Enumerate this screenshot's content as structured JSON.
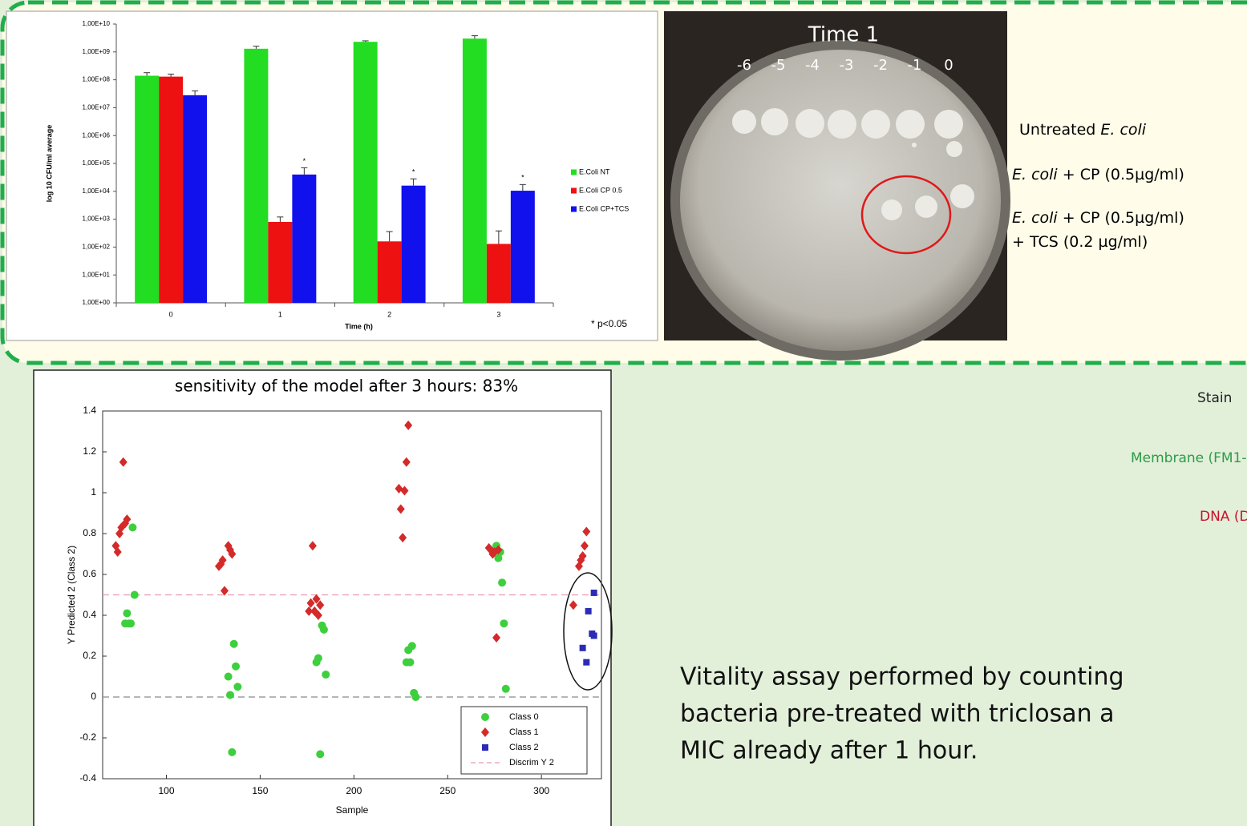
{
  "chart_data": [
    {
      "type": "bar",
      "y_label": "log 10 CFU/ml average",
      "x_label": "Time (h)",
      "categories": [
        "0",
        "1",
        "2",
        "3"
      ],
      "series": [
        {
          "name": "E.Coli NT",
          "color": "#22dd22",
          "values": [
            140000000,
            1300000000,
            2300000000,
            3000000000
          ],
          "errors": [
            40000000,
            300000000,
            200000000,
            800000000
          ]
        },
        {
          "name": "E.Coli CP 0.5",
          "color": "#ee1111",
          "values": [
            130000000,
            800,
            160,
            130
          ],
          "errors": [
            30000000,
            400,
            200,
            250
          ]
        },
        {
          "name": "E.Coli CP+TCS",
          "color": "#1111ee",
          "values": [
            28000000,
            40000,
            16000,
            10500
          ],
          "errors": [
            12000000,
            30000,
            12000,
            7000
          ]
        }
      ],
      "log_scale": true,
      "ylim": [
        1,
        10000000000
      ],
      "yticks": [
        {
          "value": 1,
          "label": "1,00E+00"
        },
        {
          "value": 10,
          "label": "1,00E+01"
        },
        {
          "value": 100,
          "label": "1,00E+02"
        },
        {
          "value": 1000,
          "label": "1,00E+03"
        },
        {
          "value": 10000,
          "label": "1,00E+04"
        },
        {
          "value": 100000,
          "label": "1,00E+05"
        },
        {
          "value": 1000000,
          "label": "1,00E+06"
        },
        {
          "value": 10000000,
          "label": "1,00E+07"
        },
        {
          "value": 100000000,
          "label": "1,00E+08"
        },
        {
          "value": 1000000000,
          "label": "1,00E+09"
        },
        {
          "value": 10000000000,
          "label": "1,00E+10"
        }
      ],
      "grid": false,
      "legend": "right",
      "annotations": [
        {
          "x": "1",
          "series": "E.Coli CP+TCS",
          "text": "*"
        },
        {
          "x": "2",
          "series": "E.Coli CP+TCS",
          "text": "*"
        },
        {
          "x": "3",
          "series": "E.Coli CP+TCS",
          "text": "*"
        }
      ],
      "note": "* p<0.05"
    },
    {
      "type": "scatter",
      "title": "sensitivity  of the model after 3 hours: 83%",
      "x_label": "Sample",
      "y_label": "Y Predicted 2 (Class 2)",
      "xlim": [
        66,
        332
      ],
      "xticks": [
        100,
        150,
        200,
        250,
        300
      ],
      "ylim": [
        -0.4,
        1.4
      ],
      "yticks": [
        -0.4,
        -0.2,
        0,
        0.2,
        0.4,
        0.6,
        0.8,
        1,
        1.2,
        1.4
      ],
      "series": [
        {
          "name": "Class 0",
          "color": "#3ecf3e",
          "marker": "circle",
          "x": [
            78,
            79,
            80,
            81,
            82,
            83,
            133,
            134,
            135,
            136,
            137,
            138,
            180,
            181,
            182,
            183,
            184,
            185,
            228,
            229,
            230,
            231,
            232,
            233,
            276,
            277,
            278,
            279,
            280,
            281
          ],
          "values": [
            0.36,
            0.41,
            0.36,
            0.36,
            0.83,
            0.5,
            0.1,
            0.01,
            -0.27,
            0.26,
            0.15,
            0.05,
            0.17,
            0.19,
            -0.28,
            0.35,
            0.33,
            0.11,
            0.17,
            0.23,
            0.17,
            0.25,
            0.02,
            0,
            0.74,
            0.68,
            0.71,
            0.56,
            0.36,
            0.04
          ]
        },
        {
          "name": "Class 1",
          "color": "#d42a2a",
          "marker": "diamond",
          "x": [
            73,
            74,
            75,
            76,
            77,
            78,
            79,
            128,
            129,
            130,
            131,
            133,
            134,
            135,
            176,
            177,
            178,
            179,
            180,
            181,
            182,
            224,
            225,
            226,
            227,
            228,
            229,
            272,
            273,
            274,
            275,
            276,
            277,
            317,
            320,
            321,
            322,
            323,
            324
          ],
          "values": [
            0.74,
            0.71,
            0.8,
            0.83,
            1.15,
            0.85,
            0.87,
            0.64,
            0.65,
            0.67,
            0.52,
            0.74,
            0.72,
            0.7,
            0.42,
            0.46,
            0.74,
            0.42,
            0.48,
            0.4,
            0.45,
            1.02,
            0.92,
            0.78,
            1.01,
            1.15,
            1.33,
            0.73,
            0.72,
            0.7,
            0.71,
            0.29,
            0.72,
            0.45,
            0.64,
            0.67,
            0.69,
            0.74,
            0.81
          ]
        },
        {
          "name": "Class 2",
          "color": "#2b2bb5",
          "marker": "square",
          "x": [
            322,
            324,
            325,
            327,
            328,
            328
          ],
          "values": [
            0.24,
            0.17,
            0.42,
            0.31,
            0.51,
            0.3
          ]
        }
      ],
      "reference_lines": [
        {
          "name": "Discrim Y 2",
          "y": 0.5,
          "color": "#e89ab4"
        },
        {
          "y": 0,
          "color": "#8a8a8a"
        }
      ],
      "legend": "lower right"
    }
  ],
  "plate": {
    "title": "Time 1",
    "dilutions": [
      "-6",
      "-5",
      "-4",
      "-3",
      "-2",
      "-1",
      "0"
    ],
    "labels": [
      [
        "Untreated ",
        "E. coli"
      ],
      [
        "E. coli",
        " + CP (0.5µg/ml)"
      ],
      [
        "E. coli",
        " + CP (0.5µg/ml)"
      ],
      [
        "+ TCS (0.2 µg/ml)"
      ]
    ]
  },
  "staining": {
    "heading": "Stain",
    "membrane": "Membrane (FM1-",
    "dna": "DNA (D"
  },
  "conclusion": [
    "Vitality assay performed by counting",
    "bacteria pre-treated with triclosan a",
    "MIC already after 1 hour."
  ]
}
